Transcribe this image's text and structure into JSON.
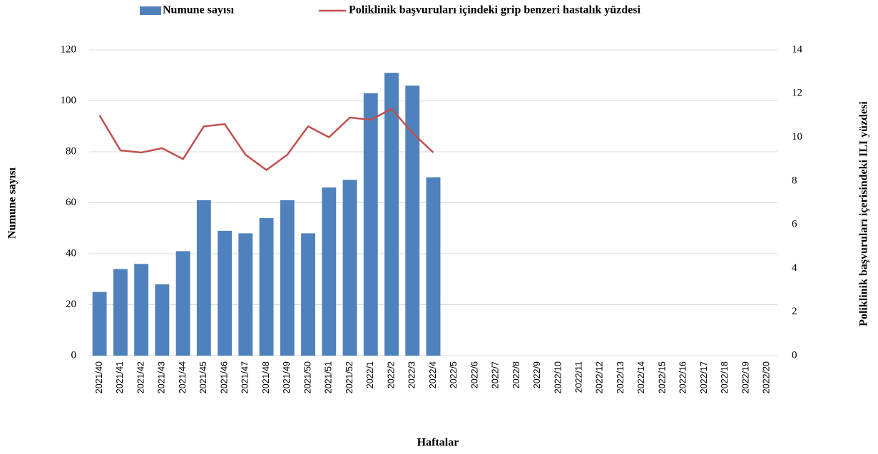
{
  "chart_data": {
    "type": "bar",
    "categories": [
      "2021/40",
      "2021/41",
      "2021/42",
      "2021/43",
      "2021/44",
      "2021/45",
      "2021/46",
      "2021/47",
      "2021/48",
      "2021/49",
      "2021/50",
      "2021/51",
      "2021/52",
      "2022/1",
      "2022/2",
      "2022/3",
      "2022/4",
      "2022/5",
      "2022/6",
      "2022/7",
      "2022/8",
      "2022/9",
      "2022/10",
      "2022/11",
      "2022/12",
      "2022/13",
      "2022/14",
      "2022/15",
      "2022/16",
      "2022/17",
      "2022/18",
      "2022/19",
      "2022/20"
    ],
    "series": [
      {
        "name": "Numune sayısı",
        "color": "#4f81bd",
        "type": "bar",
        "values": [
          25,
          34,
          36,
          28,
          41,
          61,
          49,
          48,
          54,
          61,
          48,
          66,
          69,
          103,
          111,
          106,
          70,
          null,
          null,
          null,
          null,
          null,
          null,
          null,
          null,
          null,
          null,
          null,
          null,
          null,
          null,
          null,
          null
        ]
      },
      {
        "name": "Poliklinik başvuruları içindeki grip benzeri hastalık yüzdesi",
        "color": "#c0504d",
        "type": "line",
        "axis": "y2",
        "values": [
          11.0,
          9.4,
          9.3,
          9.5,
          9.0,
          10.5,
          10.6,
          9.2,
          8.5,
          9.2,
          10.5,
          10.0,
          10.9,
          10.8,
          11.3,
          10.2,
          9.3,
          null,
          null,
          null,
          null,
          null,
          null,
          null,
          null,
          null,
          null,
          null,
          null,
          null,
          null,
          null,
          null
        ]
      }
    ],
    "x_label": "Haftalar",
    "y_label": "Numune sayısı",
    "y2_label": "Poliklinik başvuruları içerisindeki ILI yüzdesi",
    "ylim": [
      0,
      120
    ],
    "yticks": [
      0,
      20,
      40,
      60,
      80,
      100,
      120
    ],
    "y2lim": [
      0,
      14
    ],
    "y2ticks": [
      0,
      2,
      4,
      6,
      8,
      10,
      12,
      14
    ],
    "grid": true,
    "legend": "top"
  }
}
